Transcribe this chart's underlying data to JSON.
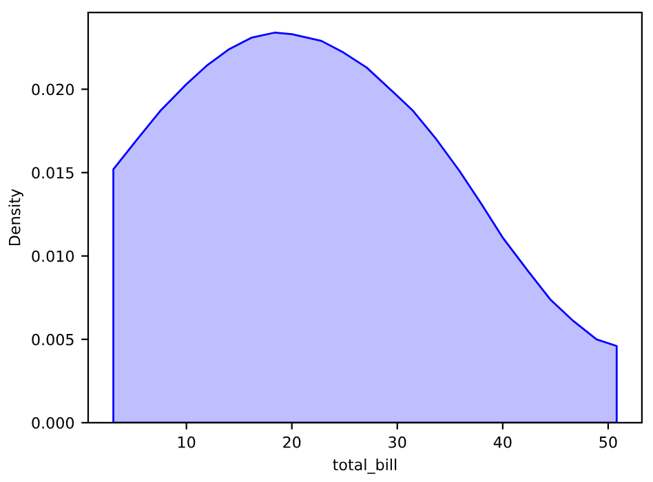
{
  "chart_data": {
    "type": "area",
    "xlabel": "total_bill",
    "ylabel": "Density",
    "xlim": [
      0.68,
      53.2
    ],
    "ylim": [
      0,
      0.0246
    ],
    "xticks": [
      10,
      20,
      30,
      40,
      50
    ],
    "yticks": [
      {
        "value": 0,
        "label": "0.000"
      },
      {
        "value": 0.005,
        "label": "0.005"
      },
      {
        "value": 0.01,
        "label": "0.010"
      },
      {
        "value": 0.015,
        "label": "0.015"
      },
      {
        "value": 0.02,
        "label": "0.020"
      }
    ],
    "grid": false,
    "legend": false,
    "x": [
      3.07,
      5.34,
      7.52,
      10,
      11.9,
      14.05,
      16.2,
      18.4,
      20,
      22.8,
      24.9,
      27.1,
      30,
      31.5,
      33.7,
      35.9,
      38.0,
      40,
      42.4,
      44.5,
      46.7,
      48.9,
      50.81
    ],
    "series": [
      {
        "color": "#0000ff",
        "values": [
          0.0152,
          0.017,
          0.0187,
          0.0203,
          0.0214,
          0.0224,
          0.0231,
          0.0234,
          0.0233,
          0.0229,
          0.0222,
          0.0213,
          0.0196,
          0.0187,
          0.017,
          0.0151,
          0.0131,
          0.0111,
          0.0091,
          0.0074,
          0.0061,
          0.005,
          0.0046
        ]
      }
    ]
  }
}
